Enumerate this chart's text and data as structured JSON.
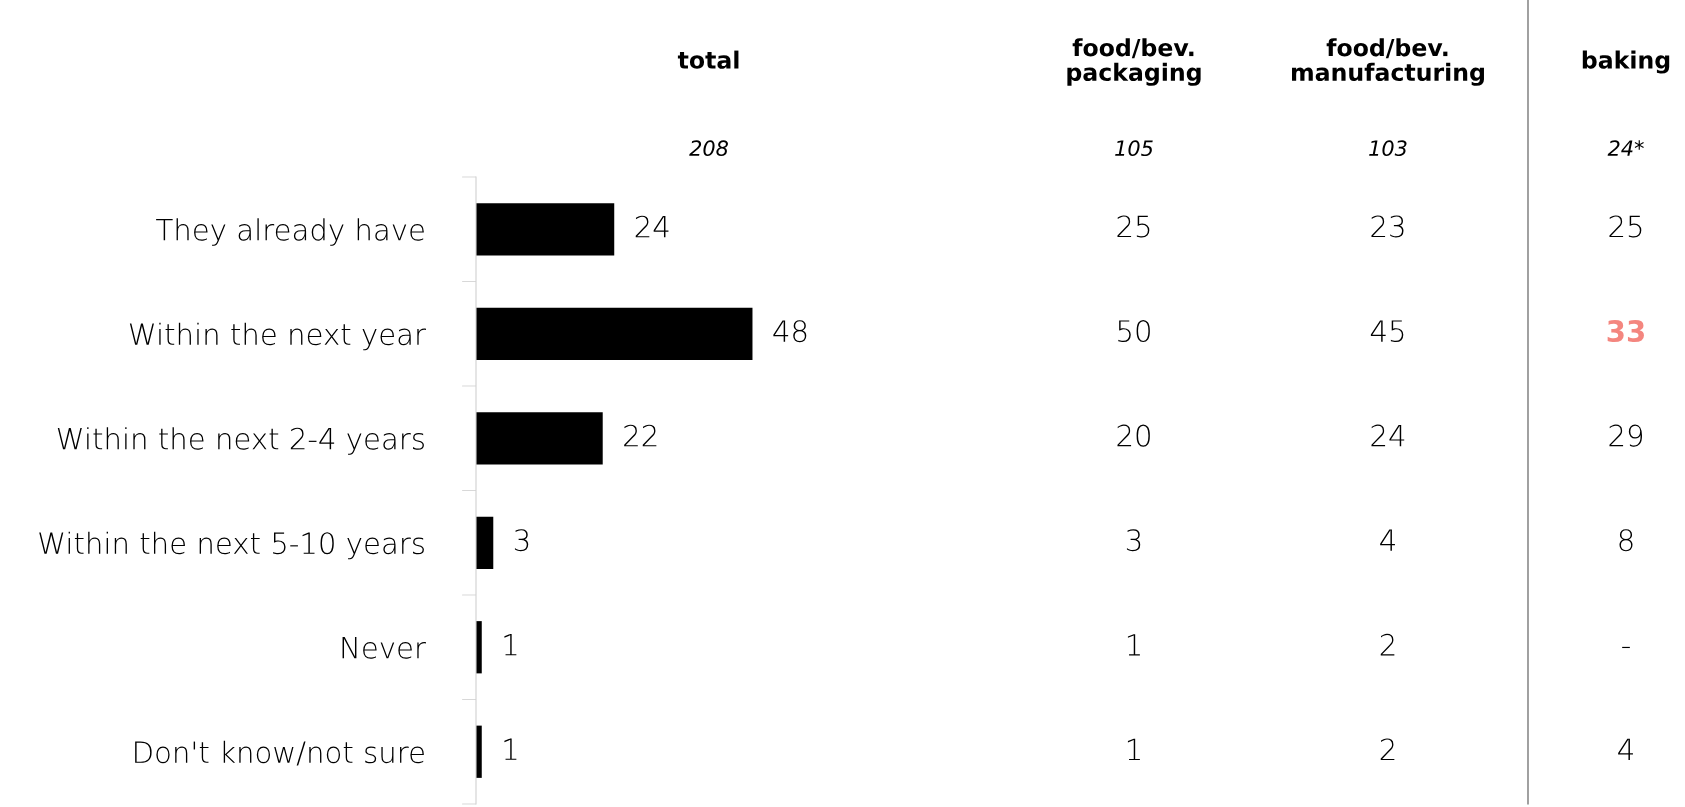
{
  "chart_data": [
    {
      "type": "bar",
      "orientation": "horizontal",
      "title": "total",
      "subtitle": "208",
      "categories": [
        "They already have",
        "Within the next year",
        "Within the next 2-4 years",
        "Within the next 5-10 years",
        "Never",
        "Don't know/not sure"
      ],
      "values": [
        24,
        48,
        22,
        3,
        1,
        1
      ],
      "color": "#000000",
      "data_labels": true
    },
    {
      "type": "other",
      "title": "food/bev.\npackaging",
      "subtitle": "105",
      "annotations": [
        "25",
        "50",
        "20",
        "3",
        "1",
        "1"
      ]
    },
    {
      "type": "other",
      "title": "food/bev.\nmanufacturing",
      "subtitle": "103",
      "annotations": [
        "23",
        "45",
        "24",
        "4",
        "2",
        "2"
      ]
    },
    {
      "type": "other",
      "title": "baking",
      "subtitle": "24*",
      "annotations": [
        "25",
        "33",
        "29",
        "8",
        "-",
        "4"
      ],
      "colors": [
        "#000000",
        "#f4867f",
        "#000000",
        "#000000",
        "#000000",
        "#000000"
      ]
    }
  ]
}
